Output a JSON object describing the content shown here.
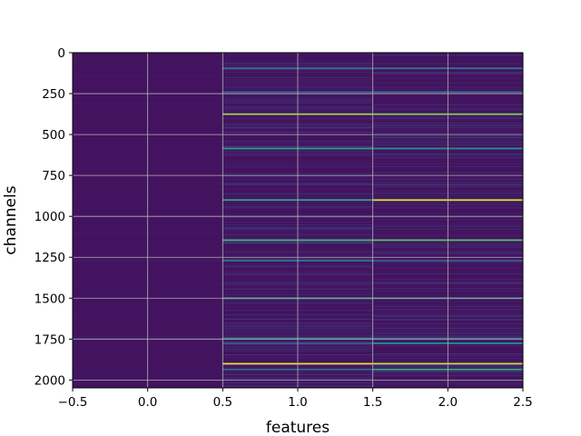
{
  "chart_data": {
    "type": "heatmap",
    "title": "",
    "xlabel": "features",
    "ylabel": "channels",
    "xlim": [
      -0.5,
      2.5
    ],
    "ylim": [
      2048,
      0
    ],
    "x_ticks": [
      "−0.5",
      "0.0",
      "0.5",
      "1.0",
      "1.5",
      "2.0",
      "2.5"
    ],
    "y_ticks": [
      "0",
      "250",
      "500",
      "750",
      "1000",
      "1250",
      "1500",
      "1750",
      "2000"
    ],
    "y_tick_values": [
      0,
      250,
      500,
      750,
      1000,
      1250,
      1500,
      1750,
      2000
    ],
    "x_tick_values": [
      -0.5,
      0.0,
      0.5,
      1.0,
      1.5,
      2.0,
      2.5
    ],
    "columns": [
      0,
      1,
      2
    ],
    "rows": 2048,
    "grid": true,
    "colormap": "viridis",
    "background_color": "#44135f",
    "highlight_rows": [
      {
        "channel": 375,
        "values": [
          0.02,
          0.85,
          0.8
        ]
      },
      {
        "channel": 585,
        "values": [
          0.02,
          0.55,
          0.5
        ]
      },
      {
        "channel": 900,
        "values": [
          0.02,
          0.55,
          0.95
        ]
      },
      {
        "channel": 1145,
        "values": [
          0.02,
          0.65,
          0.7
        ]
      },
      {
        "channel": 1500,
        "values": [
          0.02,
          0.5,
          0.45
        ]
      },
      {
        "channel": 1745,
        "values": [
          0.1,
          0.45,
          0.35
        ]
      },
      {
        "channel": 1775,
        "values": [
          0.02,
          0.3,
          0.5
        ]
      },
      {
        "channel": 1900,
        "values": [
          0.02,
          0.95,
          0.9
        ]
      },
      {
        "channel": 1935,
        "values": [
          0.02,
          0.35,
          0.6
        ]
      },
      {
        "channel": 1270,
        "values": [
          0.08,
          0.4,
          0.3
        ]
      },
      {
        "channel": 240,
        "values": [
          0.02,
          0.3,
          0.35
        ]
      },
      {
        "channel": 95,
        "values": [
          0.02,
          0.35,
          0.4
        ]
      }
    ]
  }
}
